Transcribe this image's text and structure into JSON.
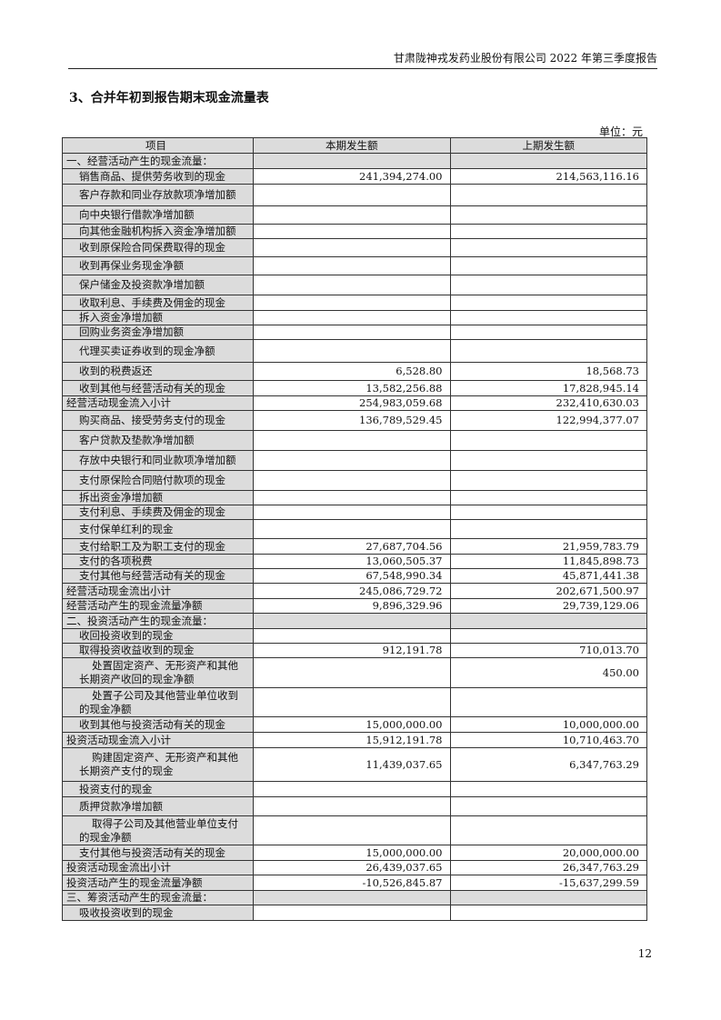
{
  "header": "甘肃陇神戎发药业股份有限公司 2022 年第三季度报告",
  "title": "3、合并年初到报告期末现金流量表",
  "unit": "单位：元",
  "columns": [
    "项目",
    "本期发生额",
    "上期发生额"
  ],
  "rows": [
    {
      "label": "一、经营活动产生的现金流量：",
      "cur": "",
      "prev": "",
      "type": "section"
    },
    {
      "label": "销售商品、提供劳务收到的现金",
      "cur": "241,394,274.00",
      "prev": "214,563,116.16",
      "type": "item"
    },
    {
      "label": "客户存款和同业存放款项净增加额",
      "cur": "",
      "prev": "",
      "type": "item"
    },
    {
      "label": "向中央银行借款净增加额",
      "cur": "",
      "prev": "",
      "type": "item"
    },
    {
      "label": "向其他金融机构拆入资金净增加额",
      "cur": "",
      "prev": "",
      "type": "item"
    },
    {
      "label": "收到原保险合同保费取得的现金",
      "cur": "",
      "prev": "",
      "type": "item"
    },
    {
      "label": "收到再保业务现金净额",
      "cur": "",
      "prev": "",
      "type": "item"
    },
    {
      "label": "保户储金及投资款净增加额",
      "cur": "",
      "prev": "",
      "type": "item"
    },
    {
      "label": "收取利息、手续费及佣金的现金",
      "cur": "",
      "prev": "",
      "type": "item"
    },
    {
      "label": "拆入资金净增加额",
      "cur": "",
      "prev": "",
      "type": "item"
    },
    {
      "label": "回购业务资金净增加额",
      "cur": "",
      "prev": "",
      "type": "item"
    },
    {
      "label": "代理买卖证券收到的现金净额",
      "cur": "",
      "prev": "",
      "type": "item"
    },
    {
      "label": "收到的税费返还",
      "cur": "6,528.80",
      "prev": "18,568.73",
      "type": "item"
    },
    {
      "label": "收到其他与经营活动有关的现金",
      "cur": "13,582,256.88",
      "prev": "17,828,945.14",
      "type": "item"
    },
    {
      "label": "经营活动现金流入小计",
      "cur": "254,983,059.68",
      "prev": "232,410,630.03",
      "type": "total"
    },
    {
      "label": "购买商品、接受劳务支付的现金",
      "cur": "136,789,529.45",
      "prev": "122,994,377.07",
      "type": "item"
    },
    {
      "label": "客户贷款及垫款净增加额",
      "cur": "",
      "prev": "",
      "type": "item"
    },
    {
      "label": "存放中央银行和同业款项净增加额",
      "cur": "",
      "prev": "",
      "type": "item"
    },
    {
      "label": "支付原保险合同赔付款项的现金",
      "cur": "",
      "prev": "",
      "type": "item"
    },
    {
      "label": "拆出资金净增加额",
      "cur": "",
      "prev": "",
      "type": "item"
    },
    {
      "label": "支付利息、手续费及佣金的现金",
      "cur": "",
      "prev": "",
      "type": "item"
    },
    {
      "label": "支付保单红利的现金",
      "cur": "",
      "prev": "",
      "type": "item"
    },
    {
      "label": "支付给职工及为职工支付的现金",
      "cur": "27,687,704.56",
      "prev": "21,959,783.79",
      "type": "item"
    },
    {
      "label": "支付的各项税费",
      "cur": "13,060,505.37",
      "prev": "11,845,898.73",
      "type": "item"
    },
    {
      "label": "支付其他与经营活动有关的现金",
      "cur": "67,548,990.34",
      "prev": "45,871,441.38",
      "type": "item"
    },
    {
      "label": "经营活动现金流出小计",
      "cur": "245,086,729.72",
      "prev": "202,671,500.97",
      "type": "total"
    },
    {
      "label": "经营活动产生的现金流量净额",
      "cur": "9,896,329.96",
      "prev": "29,739,129.06",
      "type": "total"
    },
    {
      "label": "二、投资活动产生的现金流量：",
      "cur": "",
      "prev": "",
      "type": "section"
    },
    {
      "label": "收回投资收到的现金",
      "cur": "",
      "prev": "",
      "type": "item"
    },
    {
      "label": "取得投资收益收到的现金",
      "cur": "912,191.78",
      "prev": "710,013.70",
      "type": "item"
    },
    {
      "label": "处置固定资产、无形资产和其他长期资产收回的现金净额",
      "cur": "",
      "prev": "450.00",
      "type": "item"
    },
    {
      "label": "处置子公司及其他营业单位收到的现金净额",
      "cur": "",
      "prev": "",
      "type": "item"
    },
    {
      "label": "收到其他与投资活动有关的现金",
      "cur": "15,000,000.00",
      "prev": "10,000,000.00",
      "type": "item"
    },
    {
      "label": "投资活动现金流入小计",
      "cur": "15,912,191.78",
      "prev": "10,710,463.70",
      "type": "total"
    },
    {
      "label": "购建固定资产、无形资产和其他长期资产支付的现金",
      "cur": "11,439,037.65",
      "prev": "6,347,763.29",
      "type": "item"
    },
    {
      "label": "投资支付的现金",
      "cur": "",
      "prev": "",
      "type": "item"
    },
    {
      "label": "质押贷款净增加额",
      "cur": "",
      "prev": "",
      "type": "item"
    },
    {
      "label": "取得子公司及其他营业单位支付的现金净额",
      "cur": "",
      "prev": "",
      "type": "item"
    },
    {
      "label": "支付其他与投资活动有关的现金",
      "cur": "15,000,000.00",
      "prev": "20,000,000.00",
      "type": "item"
    },
    {
      "label": "投资活动现金流出小计",
      "cur": "26,439,037.65",
      "prev": "26,347,763.29",
      "type": "total"
    },
    {
      "label": "投资活动产生的现金流量净额",
      "cur": "-10,526,845.87",
      "prev": "-15,637,299.59",
      "type": "total"
    },
    {
      "label": "三、筹资活动产生的现金流量：",
      "cur": "",
      "prev": "",
      "type": "section"
    },
    {
      "label": "吸收投资收到的现金",
      "cur": "",
      "prev": "",
      "type": "item"
    }
  ],
  "page_number": "12"
}
